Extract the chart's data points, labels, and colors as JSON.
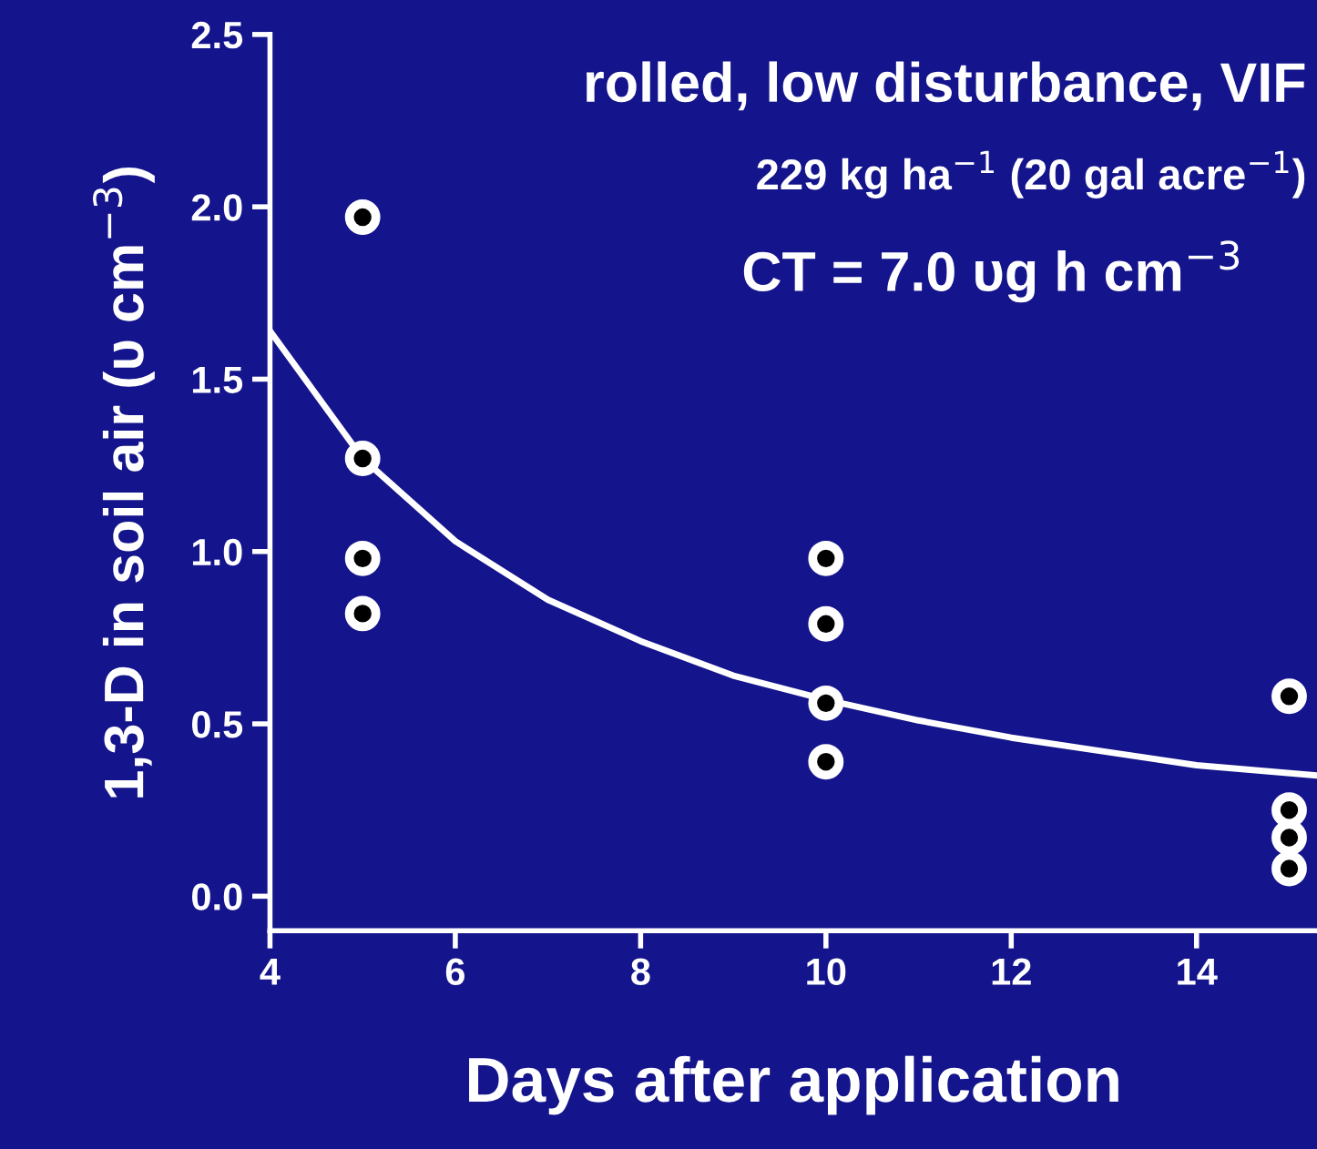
{
  "chart_data": {
    "type": "scatter",
    "xlabel": "Days after application",
    "ylabel": "1,3-D in soil air (υ cm$^{−3}$)",
    "annotations": [
      "rolled, low disturbance, VIF",
      "229 kg ha$^{−1}$ (20 gal acre$^{−1}$)",
      "CT = 7.0 υg h cm$^{−3}$"
    ],
    "series": [
      {
        "color": "#ffffff",
        "marker": "circle",
        "x": [
          5,
          5,
          5,
          5,
          10,
          10,
          10,
          10,
          15,
          15,
          15,
          15
        ],
        "values": [
          1.97,
          1.27,
          0.98,
          0.82,
          0.98,
          0.79,
          0.56,
          0.39,
          0.58,
          0.25,
          0.17,
          0.08
        ]
      },
      {
        "type": "line",
        "color": "#ffffff",
        "marker": "none",
        "line_style": "solid",
        "x": [
          4,
          5,
          6,
          7,
          8,
          9,
          10,
          11,
          12,
          13,
          14,
          15.3
        ],
        "values": [
          1.64,
          1.27,
          1.03,
          0.86,
          0.74,
          0.64,
          0.57,
          0.51,
          0.46,
          0.42,
          0.38,
          0.35
        ]
      }
    ],
    "xlim": [
      4,
      15.3
    ],
    "ylim": [
      -0.1,
      2.5
    ],
    "xticks": [
      4,
      6,
      8,
      10,
      12,
      14
    ],
    "yticks": [
      {
        "value": 0,
        "label": "0.0"
      },
      {
        "value": 0.5,
        "label": "0.5"
      },
      {
        "value": 1,
        "label": "1.0"
      },
      {
        "value": 1.5,
        "label": "1.5"
      },
      {
        "value": 2,
        "label": "2.0"
      },
      {
        "value": 2.5,
        "label": "2.5"
      }
    ],
    "grid": false,
    "legend": false
  }
}
